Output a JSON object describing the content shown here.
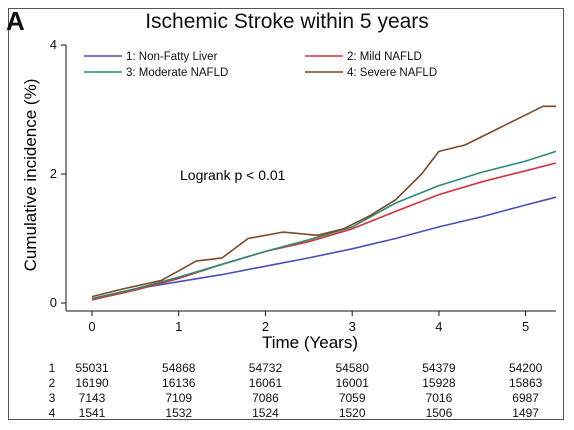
{
  "panel_letter": "A",
  "chart_data": {
    "type": "line",
    "title": "Ischemic Stroke within 5 years",
    "xlabel": "Time (Years)",
    "ylabel": "Cumulative incidence (%)",
    "xlim": [
      -0.3,
      5.35
    ],
    "ylim": [
      0,
      4
    ],
    "xticks": [
      0,
      1,
      2,
      3,
      4,
      5
    ],
    "yticks": [
      0,
      2,
      4
    ],
    "grid": false,
    "legend_position": "top",
    "annotation": "Logrank p < 0.01",
    "series": [
      {
        "id": "1",
        "name": "1: Non-Fatty Liver",
        "color": "#4a4fb8",
        "x": [
          0,
          0.5,
          1,
          1.5,
          2,
          2.5,
          3,
          3.5,
          4,
          4.5,
          5,
          5.35
        ],
        "y": [
          0.05,
          0.22,
          0.33,
          0.44,
          0.57,
          0.7,
          0.84,
          1.0,
          1.18,
          1.34,
          1.52,
          1.64
        ]
      },
      {
        "id": "2",
        "name": "2: Mild NAFLD",
        "color": "#d1343a",
        "x": [
          0,
          0.5,
          1,
          1.5,
          2,
          2.5,
          3,
          3.5,
          4,
          4.5,
          5,
          5.35
        ],
        "y": [
          0.05,
          0.2,
          0.38,
          0.6,
          0.8,
          0.95,
          1.15,
          1.42,
          1.68,
          1.88,
          2.05,
          2.17
        ]
      },
      {
        "id": "3",
        "name": "3: Moderate NAFLD",
        "color": "#2e8a74",
        "x": [
          0,
          0.5,
          1,
          1.5,
          2,
          2.5,
          3,
          3.5,
          4,
          4.5,
          5,
          5.35
        ],
        "y": [
          0.07,
          0.22,
          0.4,
          0.6,
          0.8,
          0.98,
          1.18,
          1.55,
          1.82,
          2.03,
          2.2,
          2.35
        ]
      },
      {
        "id": "4",
        "name": "4: Severe NAFLD",
        "color": "#7a4a28",
        "x": [
          0,
          0.3,
          0.8,
          1,
          1.2,
          1.5,
          1.8,
          2.2,
          2.6,
          2.9,
          3.2,
          3.5,
          3.8,
          4.0,
          4.3,
          4.6,
          4.9,
          5.2,
          5.35
        ],
        "y": [
          0.1,
          0.2,
          0.35,
          0.5,
          0.65,
          0.7,
          1.0,
          1.1,
          1.05,
          1.15,
          1.35,
          1.6,
          2.0,
          2.35,
          2.45,
          2.65,
          2.85,
          3.05,
          3.05
        ]
      }
    ],
    "risk_table": {
      "rows": [
        {
          "label": "1",
          "values": [
            "55031",
            "54868",
            "54732",
            "54580",
            "54379",
            "54200"
          ]
        },
        {
          "label": "2",
          "values": [
            "16190",
            "16136",
            "16061",
            "16001",
            "15928",
            "15863"
          ]
        },
        {
          "label": "3",
          "values": [
            "7143",
            "7109",
            "7086",
            "7059",
            "7016",
            "6987"
          ]
        },
        {
          "label": "4",
          "values": [
            "1541",
            "1532",
            "1524",
            "1520",
            "1506",
            "1497"
          ]
        }
      ]
    }
  }
}
